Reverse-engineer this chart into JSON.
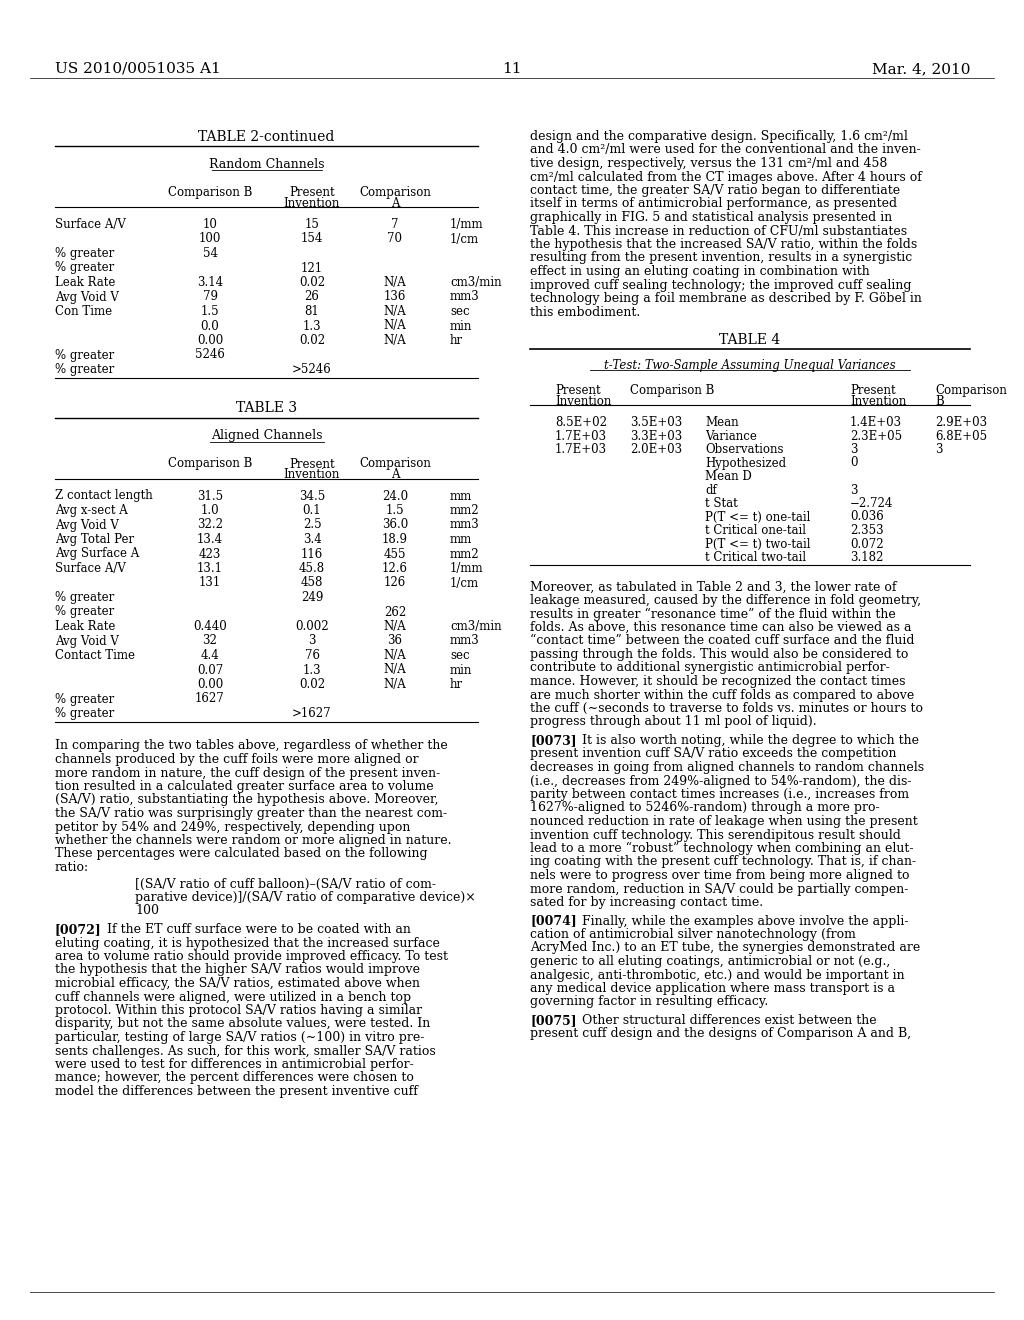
{
  "page_number": "11",
  "patent_number": "US 2010/0051035 A1",
  "date": "Mar. 4, 2010",
  "background_color": "#ffffff"
}
